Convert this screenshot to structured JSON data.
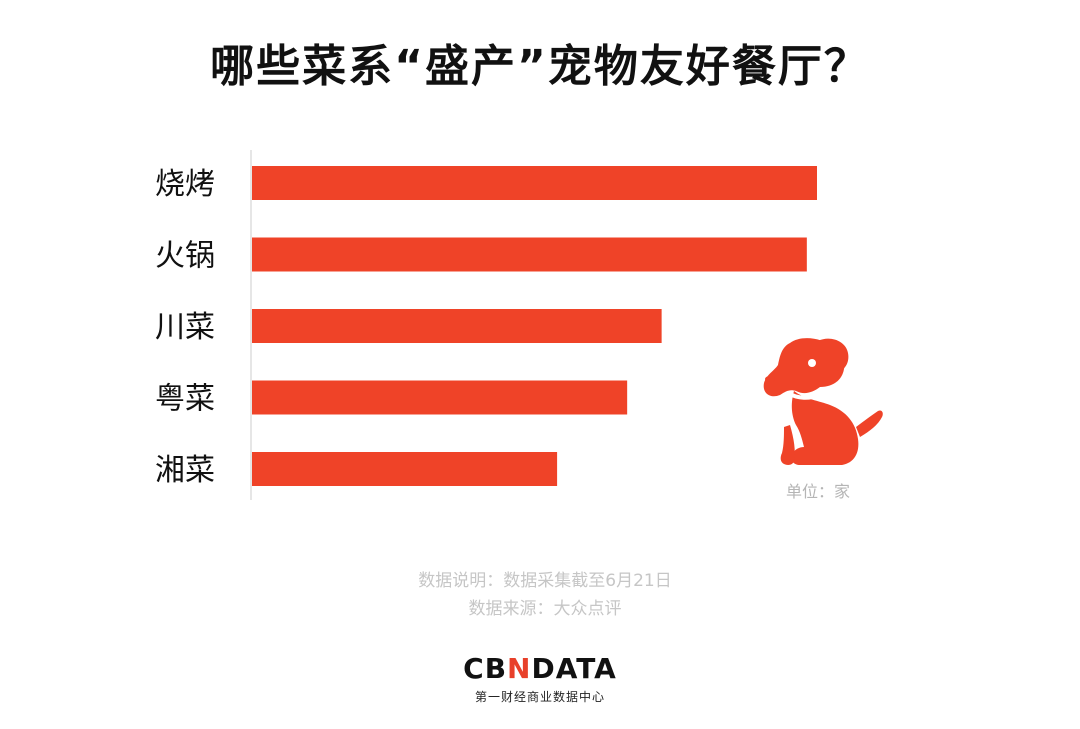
{
  "title": "哪些菜系“盛产”宠物友好餐厅？",
  "unit_label": "单位：家",
  "notes": {
    "collection": "数据说明：数据采集截至6月21日",
    "source": "数据来源：大众点评"
  },
  "logo": {
    "left": "CB",
    "mark": "N",
    "right": "DATA",
    "subtitle": "第一财经商业数据中心"
  },
  "colors": {
    "bar": "#ef4328",
    "axis": "#e6e6e6",
    "text": "#111111"
  },
  "icons": {
    "dog": "dog-icon"
  },
  "chart_data": {
    "type": "bar",
    "orientation": "horizontal",
    "categories": [
      "烧烤",
      "火锅",
      "川菜",
      "粤菜",
      "湘菜"
    ],
    "values": [
      100,
      98.2,
      72.5,
      66.4,
      54.0
    ],
    "xlim": [
      0,
      100
    ],
    "grid": false,
    "legend": "none"
  }
}
